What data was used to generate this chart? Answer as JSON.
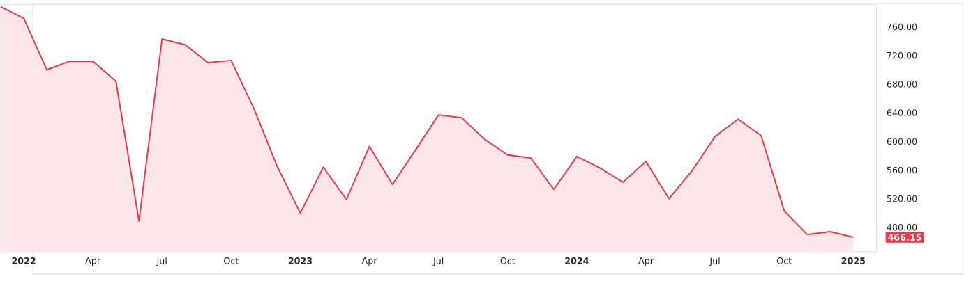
{
  "chart_data": {
    "type": "area",
    "color": "#f23645",
    "x": [
      "2021-12",
      "2022-01",
      "2022-02",
      "2022-03",
      "2022-04",
      "2022-05",
      "2022-06",
      "2022-07",
      "2022-08",
      "2022-09",
      "2022-10",
      "2022-11",
      "2022-12",
      "2023-01",
      "2023-02",
      "2023-03",
      "2023-04",
      "2023-05",
      "2023-06",
      "2023-07",
      "2023-08",
      "2023-09",
      "2023-10",
      "2023-11",
      "2023-12",
      "2024-01",
      "2024-02",
      "2024-03",
      "2024-04",
      "2024-05",
      "2024-06",
      "2024-07",
      "2024-08",
      "2024-09",
      "2024-10",
      "2024-11",
      "2024-12",
      "2025-01"
    ],
    "values": [
      788,
      772,
      700,
      712,
      712,
      684,
      489,
      743,
      735,
      710,
      713,
      645,
      565,
      500,
      564,
      519,
      593,
      540,
      588,
      637,
      633,
      603,
      581,
      577,
      533,
      579,
      563,
      543,
      572,
      520,
      559,
      607,
      631,
      608,
      503,
      470,
      474,
      466.15
    ],
    "xlim": [
      "2021-12",
      "2025-02"
    ],
    "ylim": [
      446,
      791
    ],
    "xticks": [
      {
        "value": "2022-01",
        "label": "2022"
      },
      {
        "value": "2022-04",
        "label": "Apr"
      },
      {
        "value": "2022-07",
        "label": "Jul"
      },
      {
        "value": "2022-10",
        "label": "Oct"
      },
      {
        "value": "2023-01",
        "label": "2023"
      },
      {
        "value": "2023-04",
        "label": "Apr"
      },
      {
        "value": "2023-07",
        "label": "Jul"
      },
      {
        "value": "2023-10",
        "label": "Oct"
      },
      {
        "value": "2024-01",
        "label": "2024"
      },
      {
        "value": "2024-04",
        "label": "Apr"
      },
      {
        "value": "2024-07",
        "label": "Jul"
      },
      {
        "value": "2024-10",
        "label": "Oct"
      },
      {
        "value": "2025-01",
        "label": "2025"
      }
    ],
    "yticks": [
      {
        "value": 480,
        "label": "480.00"
      },
      {
        "value": 520,
        "label": "520.00"
      },
      {
        "value": 560,
        "label": "560.00"
      },
      {
        "value": 600,
        "label": "600.00"
      },
      {
        "value": 640,
        "label": "640.00"
      },
      {
        "value": 680,
        "label": "680.00"
      },
      {
        "value": 720,
        "label": "720.00"
      },
      {
        "value": 760,
        "label": "760.00"
      }
    ],
    "annotations": [
      "466.15"
    ]
  }
}
